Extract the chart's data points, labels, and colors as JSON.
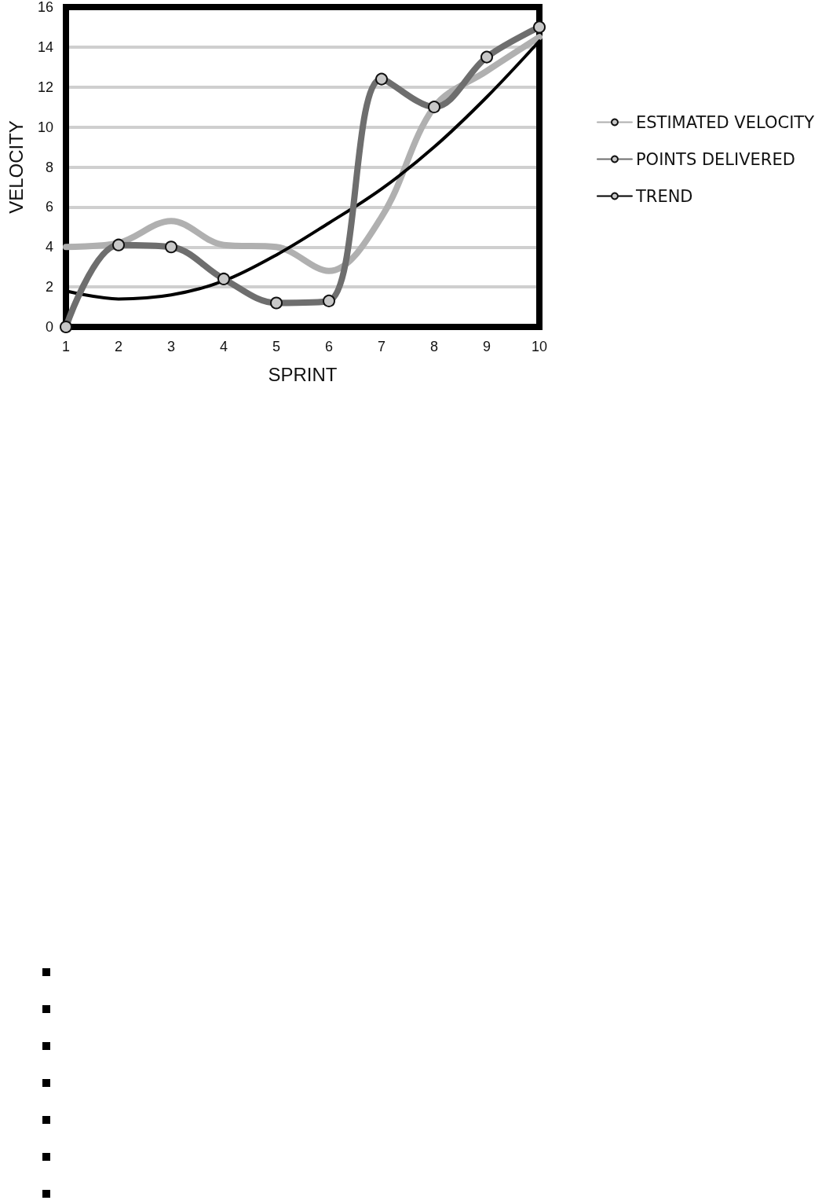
{
  "chart_data": {
    "type": "line",
    "xlabel": "SPRINT",
    "ylabel": "VELOCITY",
    "categories": [
      "1",
      "2",
      "3",
      "4",
      "5",
      "6",
      "7",
      "8",
      "9",
      "10"
    ],
    "series": [
      {
        "name": "ESTIMATED VELOCITY",
        "color": "#b0b0b0",
        "values": [
          4,
          4.2,
          5.3,
          4.1,
          4,
          2.8,
          5.5,
          11,
          12.8,
          14.5
        ]
      },
      {
        "name": "POINTS DELIVERED",
        "color": "#6e6e6e",
        "marker": "circle",
        "values": [
          0,
          4.1,
          4,
          2.4,
          1.2,
          1.3,
          12.4,
          11,
          13.5,
          15
        ]
      },
      {
        "name": "TREND",
        "color": "#000000",
        "values": [
          1.8,
          1.4,
          1.6,
          2.3,
          3.6,
          5.2,
          6.9,
          9,
          11.5,
          14.3
        ]
      }
    ],
    "ylim": [
      0,
      16
    ],
    "yticks": [
      0,
      2,
      4,
      6,
      8,
      10,
      12,
      14,
      16
    ],
    "grid": "y",
    "legend": "right"
  }
}
